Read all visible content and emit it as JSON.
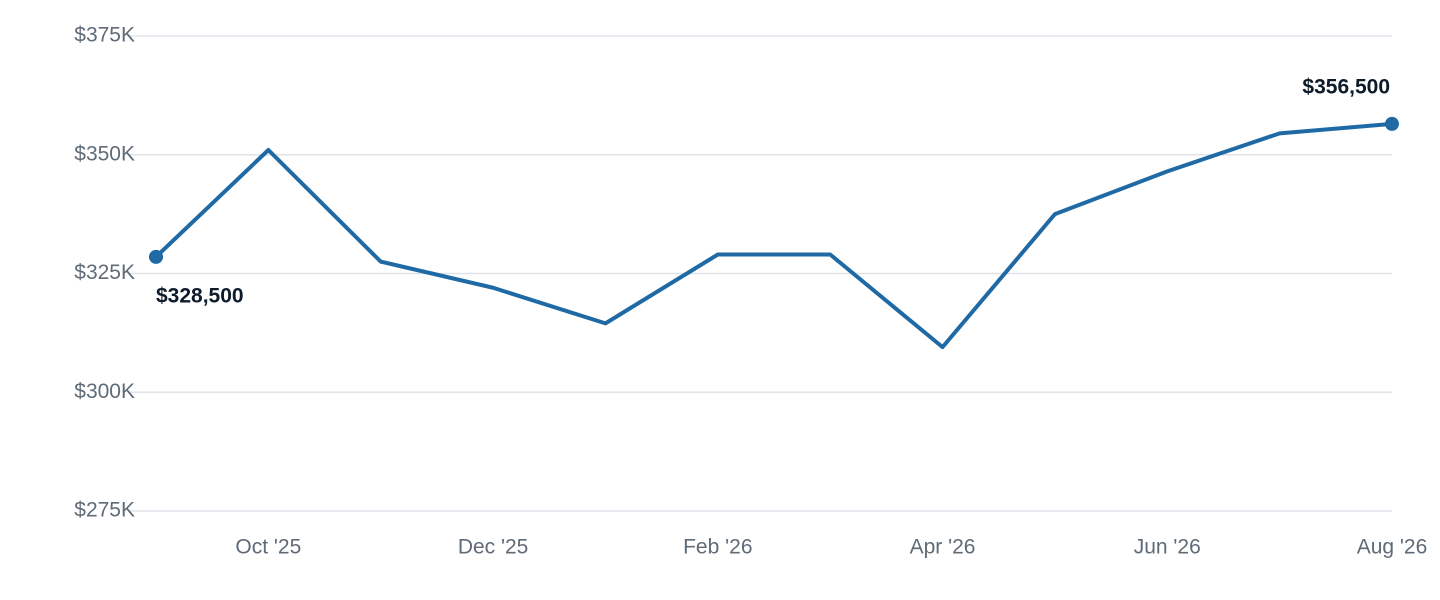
{
  "chart_data": {
    "type": "line",
    "categories": [
      null,
      "Oct '25",
      null,
      "Dec '25",
      null,
      "Feb '26",
      null,
      "Apr '26",
      null,
      "Jun '26",
      null,
      "Aug '26"
    ],
    "series": [
      {
        "color": "#1f6aa5",
        "values": [
          328500,
          351000,
          327500,
          322000,
          314500,
          329000,
          329000,
          309500,
          337500,
          346500,
          354500,
          356500
        ],
        "value_labels": [
          "$328,500",
          null,
          null,
          null,
          null,
          null,
          null,
          null,
          null,
          null,
          null,
          "$356,500"
        ]
      }
    ],
    "ylim": [
      275000,
      375000
    ],
    "yticks": [
      {
        "value": 275000,
        "label": "$275K"
      },
      {
        "value": 300000,
        "label": "$300K"
      },
      {
        "value": 325000,
        "label": "$325K"
      },
      {
        "value": 350000,
        "label": "$350K"
      },
      {
        "value": 375000,
        "label": "$375K"
      }
    ],
    "grid": true
  }
}
